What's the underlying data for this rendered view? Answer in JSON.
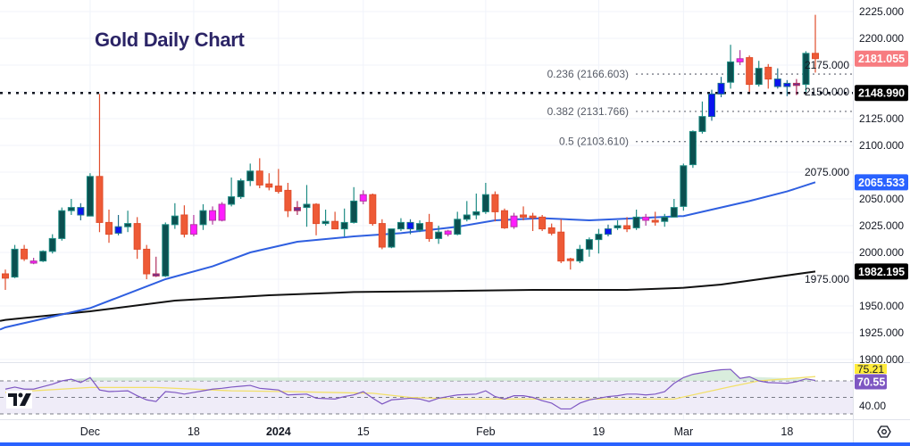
{
  "title": "Gold Daily Chart",
  "colors": {
    "bull_fill": "#0b5050",
    "bull_stroke": "#1e8c84",
    "bear_fill": "#ee5a36",
    "bear_stroke": "#e04d2c",
    "magenta": "#ff1cff",
    "blue": "#0a14f0",
    "purple": "#6d2f8c",
    "ma_fast": "#2f5fe0",
    "ma_slow": "#111111",
    "rsi": "#7e57c2",
    "rsi_ma": "#f2e06a",
    "rsi_band": "#efecf8",
    "last_price_bg": "#f77c80",
    "level_bg": "#000000",
    "ma_fast_bg": "#2962ff",
    "rsi_ma_bg": "#ffeb3b",
    "rsi_bg": "#7e57c2",
    "bottom_bar": "#2962ff"
  },
  "chart_data": {
    "type": "candlestick",
    "title": "Gold Daily Chart",
    "ylim": [
      1900,
      2225
    ],
    "yticks": [
      "2225.000",
      "2200.000",
      "2175.000",
      "2150.000",
      "2125.000",
      "2100.000",
      "2075.000",
      "2050.000",
      "2025.000",
      "2000.000",
      "1975.000",
      "1950.000",
      "1925.000",
      "1900.000"
    ],
    "grid": true,
    "xtick_labels": [
      {
        "date": "2023-12-01",
        "label": "Dec"
      },
      {
        "date": "2023-12-18",
        "label": "18"
      },
      {
        "date": "2024-01-02",
        "label": "2024"
      },
      {
        "date": "2024-01-15",
        "label": "15"
      },
      {
        "date": "2024-02-01",
        "label": "Feb"
      },
      {
        "date": "2024-02-19",
        "label": "19"
      },
      {
        "date": "2024-03-01",
        "label": "Mar"
      },
      {
        "date": "2024-03-18",
        "label": "18"
      }
    ],
    "candles": [
      [
        "2023-11-20",
        1980,
        1984,
        1965,
        1976,
        "bear"
      ],
      [
        "2023-11-21",
        1977,
        2007,
        1976,
        2003,
        "bull"
      ],
      [
        "2023-11-22",
        2003,
        2007,
        1992,
        1994,
        "bear"
      ],
      [
        "2023-11-23",
        1990,
        1995,
        1989,
        1992,
        "magenta"
      ],
      [
        "2023-11-24",
        1992,
        2002,
        1991,
        2001,
        "bull"
      ],
      [
        "2023-11-27",
        2001,
        2017,
        1999,
        2013,
        "bull"
      ],
      [
        "2023-11-28",
        2013,
        2042,
        2011,
        2039,
        "bull"
      ],
      [
        "2023-11-29",
        2039,
        2050,
        2035,
        2042,
        "bull"
      ],
      [
        "2023-11-30",
        2042,
        2046,
        2030,
        2035,
        "blue"
      ],
      [
        "2023-12-01",
        2034,
        2074,
        2034,
        2071,
        "bull"
      ],
      [
        "2023-12-04",
        2071,
        2148,
        2019,
        2028,
        "bear"
      ],
      [
        "2023-12-05",
        2028,
        2040,
        2009,
        2017,
        "bear"
      ],
      [
        "2023-12-06",
        2018,
        2035,
        2016,
        2024,
        "blue"
      ],
      [
        "2023-12-07",
        2024,
        2039,
        2019,
        2027,
        "bull"
      ],
      [
        "2023-12-08",
        2027,
        2033,
        1994,
        2003,
        "bear"
      ],
      [
        "2023-12-11",
        2003,
        2007,
        1975,
        1980,
        "bear"
      ],
      [
        "2023-12-12",
        1980,
        1996,
        1977,
        1978,
        "purple"
      ],
      [
        "2023-12-13",
        1978,
        2028,
        1977,
        2026,
        "bull"
      ],
      [
        "2023-12-14",
        2026,
        2046,
        2022,
        2034,
        "bull"
      ],
      [
        "2023-12-15",
        2035,
        2044,
        2014,
        2017,
        "bear"
      ],
      [
        "2023-12-18",
        2017,
        2035,
        2015,
        2026,
        "magenta"
      ],
      [
        "2023-12-19",
        2026,
        2045,
        2021,
        2039,
        "bull"
      ],
      [
        "2023-12-20",
        2030,
        2043,
        2026,
        2039,
        "magenta"
      ],
      [
        "2023-12-21",
        2030,
        2047,
        2029,
        2045,
        "magenta"
      ],
      [
        "2023-12-22",
        2045,
        2070,
        2043,
        2052,
        "bull"
      ],
      [
        "2023-12-26",
        2052,
        2069,
        2050,
        2067,
        "bull"
      ],
      [
        "2023-12-27",
        2067,
        2083,
        2062,
        2076,
        "bull"
      ],
      [
        "2023-12-28",
        2076,
        2088,
        2060,
        2063,
        "bear"
      ],
      [
        "2023-12-29",
        2064,
        2074,
        2058,
        2061,
        "bear"
      ],
      [
        "2024-01-02",
        2062,
        2078,
        2055,
        2057,
        "bear"
      ],
      [
        "2024-01-03",
        2058,
        2065,
        2033,
        2039,
        "bear"
      ],
      [
        "2024-01-04",
        2039,
        2048,
        2035,
        2042,
        "purple"
      ],
      [
        "2024-01-05",
        2042,
        2063,
        2024,
        2045,
        "bull"
      ],
      [
        "2024-01-08",
        2045,
        2046,
        2016,
        2027,
        "bear"
      ],
      [
        "2024-01-09",
        2027,
        2040,
        2025,
        2029,
        "bull"
      ],
      [
        "2024-01-10",
        2029,
        2038,
        2022,
        2022,
        "bear"
      ],
      [
        "2024-01-11",
        2022,
        2041,
        2015,
        2028,
        "bull"
      ],
      [
        "2024-01-12",
        2028,
        2061,
        2027,
        2048,
        "bull"
      ],
      [
        "2024-01-15",
        2048,
        2058,
        2045,
        2054,
        "magenta"
      ],
      [
        "2024-01-16",
        2054,
        2055,
        2025,
        2027,
        "bear"
      ],
      [
        "2024-01-17",
        2027,
        2031,
        2003,
        2005,
        "bear"
      ],
      [
        "2024-01-18",
        2005,
        2022,
        2004,
        2022,
        "bull"
      ],
      [
        "2024-01-19",
        2022,
        2032,
        2020,
        2028,
        "bull"
      ],
      [
        "2024-01-22",
        2028,
        2031,
        2017,
        2022,
        "blue"
      ],
      [
        "2024-01-23",
        2021,
        2030,
        2019,
        2027,
        "bull"
      ],
      [
        "2024-01-24",
        2028,
        2036,
        2010,
        2013,
        "bear"
      ],
      [
        "2024-01-25",
        2013,
        2025,
        2008,
        2019,
        "bull"
      ],
      [
        "2024-01-26",
        2017,
        2021,
        2015,
        2020,
        "magenta"
      ],
      [
        "2024-01-29",
        2017,
        2038,
        2016,
        2031,
        "bull"
      ],
      [
        "2024-01-30",
        2031,
        2048,
        2029,
        2035,
        "bull"
      ],
      [
        "2024-01-31",
        2035,
        2055,
        2031,
        2038,
        "bull"
      ],
      [
        "2024-02-01",
        2038,
        2065,
        2036,
        2054,
        "bull"
      ],
      [
        "2024-02-02",
        2054,
        2057,
        2029,
        2038,
        "bear"
      ],
      [
        "2024-02-05",
        2039,
        2041,
        2022,
        2023,
        "bear"
      ],
      [
        "2024-02-06",
        2024,
        2037,
        2022,
        2034,
        "magenta"
      ],
      [
        "2024-02-07",
        2035,
        2043,
        2030,
        2033,
        "bear"
      ],
      [
        "2024-02-08",
        2034,
        2037,
        2020,
        2033,
        "bear"
      ],
      [
        "2024-02-09",
        2033,
        2035,
        2020,
        2022,
        "bear"
      ],
      [
        "2024-02-12",
        2023,
        2027,
        2016,
        2018,
        "bear"
      ],
      [
        "2024-02-13",
        2019,
        2031,
        1990,
        1992,
        "bear"
      ],
      [
        "2024-02-14",
        1994,
        1995,
        1984,
        1993,
        "bear"
      ],
      [
        "2024-02-15",
        1992,
        2007,
        1990,
        2003,
        "bull"
      ],
      [
        "2024-02-16",
        2003,
        2014,
        1996,
        2012,
        "bull"
      ],
      [
        "2024-02-19",
        2012,
        2022,
        1999,
        2017,
        "bull"
      ],
      [
        "2024-02-20",
        2017,
        2026,
        2015,
        2022,
        "blue"
      ],
      [
        "2024-02-21",
        2023,
        2030,
        2021,
        2025,
        "bull"
      ],
      [
        "2024-02-22",
        2025,
        2033,
        2019,
        2022,
        "bear"
      ],
      [
        "2024-02-23",
        2023,
        2040,
        2021,
        2033,
        "bull"
      ],
      [
        "2024-02-26",
        2030,
        2036,
        2025,
        2033,
        "magenta"
      ],
      [
        "2024-02-27",
        2030,
        2038,
        2025,
        2030,
        "bear"
      ],
      [
        "2024-02-28",
        2029,
        2036,
        2024,
        2033,
        "bull"
      ],
      [
        "2024-02-29",
        2033,
        2050,
        2033,
        2042,
        "bull"
      ],
      [
        "2024-03-01",
        2043,
        2083,
        2039,
        2081,
        "bull"
      ],
      [
        "2024-03-04",
        2082,
        2114,
        2079,
        2113,
        "bull"
      ],
      [
        "2024-03-05",
        2113,
        2141,
        2111,
        2127,
        "bull"
      ],
      [
        "2024-03-06",
        2127,
        2152,
        2123,
        2148,
        "blue"
      ],
      [
        "2024-03-07",
        2148,
        2164,
        2145,
        2158,
        "blue"
      ],
      [
        "2024-03-08",
        2159,
        2194,
        2153,
        2178,
        "bull"
      ],
      [
        "2024-03-11",
        2178,
        2189,
        2175,
        2181,
        "magenta"
      ],
      [
        "2024-03-12",
        2182,
        2184,
        2150,
        2157,
        "bear"
      ],
      [
        "2024-03-13",
        2157,
        2179,
        2155,
        2172,
        "bull"
      ],
      [
        "2024-03-14",
        2173,
        2176,
        2153,
        2162,
        "bear"
      ],
      [
        "2024-03-15",
        2162,
        2172,
        2153,
        2155,
        "blue"
      ],
      [
        "2024-03-18",
        2155,
        2161,
        2146,
        2158,
        "blue"
      ],
      [
        "2024-03-19",
        2156,
        2162,
        2147,
        2158,
        "purple"
      ],
      [
        "2024-03-20",
        2157,
        2188,
        2150,
        2186,
        "bull"
      ],
      [
        "2024-03-21",
        2186,
        2222,
        2168,
        2181.055,
        "bear"
      ]
    ],
    "ma_fast": [
      [
        "2023-11-15",
        1928
      ],
      [
        "2023-11-20",
        1930
      ],
      [
        "2023-12-01",
        1948
      ],
      [
        "2023-12-13",
        1975
      ],
      [
        "2023-12-20",
        1987
      ],
      [
        "2023-12-27",
        2000
      ],
      [
        "2024-01-04",
        2010
      ],
      [
        "2024-01-12",
        2015
      ],
      [
        "2024-01-19",
        2018
      ],
      [
        "2024-01-29",
        2024
      ],
      [
        "2024-02-02",
        2030
      ],
      [
        "2024-02-09",
        2032
      ],
      [
        "2024-02-16",
        2030
      ],
      [
        "2024-02-23",
        2032
      ],
      [
        "2024-03-01",
        2034
      ],
      [
        "2024-03-06",
        2040
      ],
      [
        "2024-03-12",
        2048
      ],
      [
        "2024-03-18",
        2057
      ],
      [
        "2024-03-21",
        2065.533
      ]
    ],
    "ma_slow": [
      [
        "2023-11-15",
        1936
      ],
      [
        "2023-11-20",
        1937
      ],
      [
        "2023-12-01",
        1945
      ],
      [
        "2023-12-14",
        1955
      ],
      [
        "2023-12-29",
        1960
      ],
      [
        "2024-01-12",
        1963
      ],
      [
        "2024-01-26",
        1964
      ],
      [
        "2024-02-08",
        1965
      ],
      [
        "2024-02-22",
        1965
      ],
      [
        "2024-03-01",
        1967
      ],
      [
        "2024-03-07",
        1970
      ],
      [
        "2024-03-21",
        1982.195
      ]
    ],
    "levels": [
      {
        "name": "0.236",
        "value": 2166.603,
        "label": "0.236 (2166.603)"
      },
      {
        "name": "0.382",
        "value": 2131.766,
        "label": "0.382 (2131.766)"
      },
      {
        "name": "0.5",
        "value": 2103.61,
        "label": "0.5 (2103.610)"
      }
    ],
    "horizontal_line": {
      "value": 2148.99,
      "label": "2148.990"
    },
    "price_labels": {
      "last": "2181.055",
      "ma_fast": "2065.533",
      "ma_slow": "1982.195"
    },
    "rsi": {
      "levels": [
        70,
        50,
        30
      ],
      "tick": "40.00",
      "value_label": "70.55",
      "ma_label": "75.21",
      "values": [
        60,
        62.5,
        60,
        60,
        63,
        66,
        70,
        72,
        68,
        74,
        59,
        57,
        57.5,
        58,
        52,
        47,
        45,
        57,
        56,
        54,
        56,
        58,
        60,
        61,
        62.5,
        63.5,
        64.5,
        61,
        60,
        59,
        53,
        53.5,
        54,
        49,
        48.5,
        48,
        51,
        53,
        57,
        49,
        42,
        47,
        48,
        49,
        48,
        45,
        49,
        51,
        53,
        53.5,
        54,
        58,
        51,
        48,
        52,
        52,
        50,
        46,
        43,
        36,
        36,
        43,
        47,
        49,
        51,
        52,
        54,
        54,
        53,
        54,
        57,
        67,
        74,
        78,
        80,
        82,
        83.5,
        84,
        73,
        75,
        70,
        68,
        67.5,
        67,
        69,
        72.5,
        70.55
      ],
      "ma": [
        [
          "2023-11-20",
          56
        ],
        [
          "2023-12-01",
          62
        ],
        [
          "2023-12-12",
          62
        ],
        [
          "2023-12-22",
          58
        ],
        [
          "2024-01-03",
          57
        ],
        [
          "2024-01-16",
          55
        ],
        [
          "2024-01-22",
          50
        ],
        [
          "2024-01-29",
          48
        ],
        [
          "2024-02-15",
          48
        ],
        [
          "2024-02-29",
          48
        ],
        [
          "2024-03-08",
          63
        ],
        [
          "2024-03-13",
          70
        ],
        [
          "2024-03-21",
          75.21
        ]
      ]
    }
  }
}
